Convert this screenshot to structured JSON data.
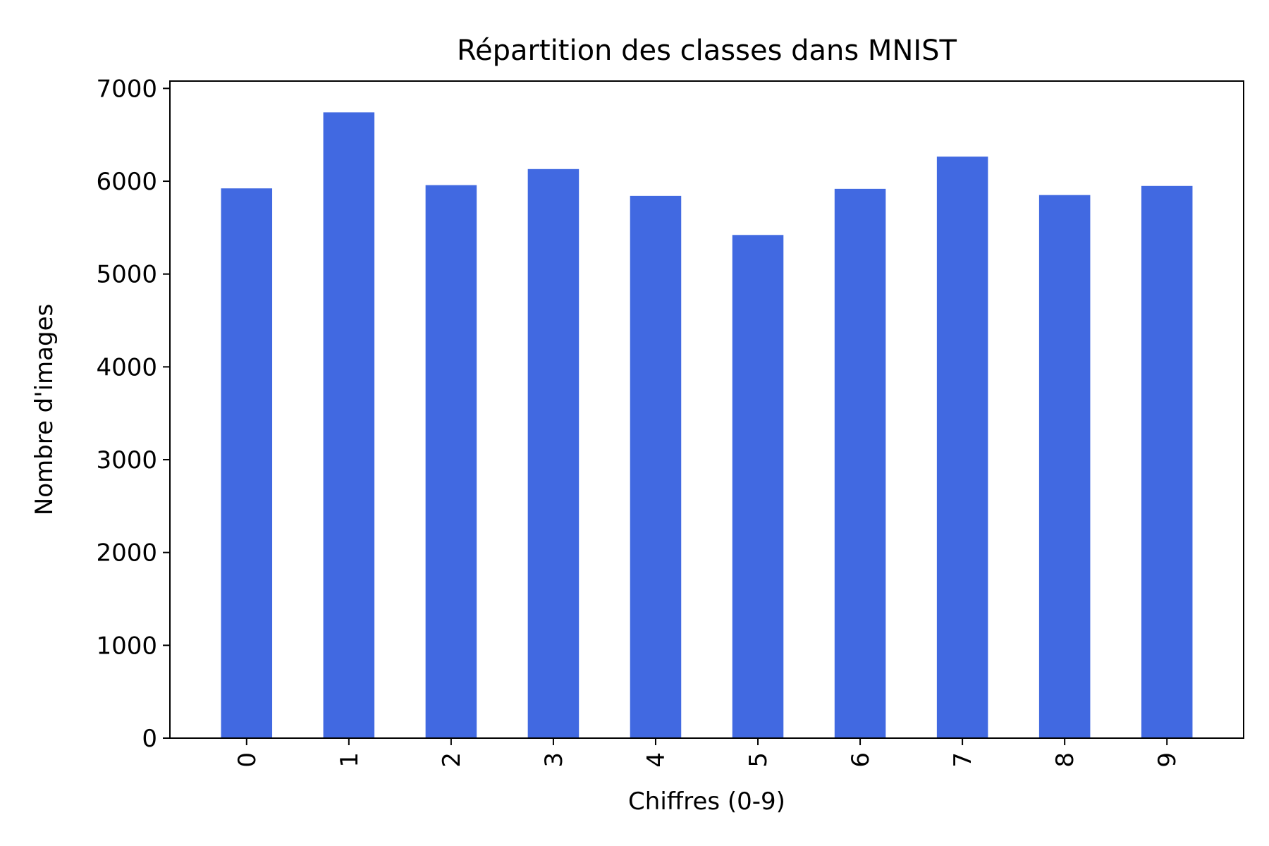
{
  "chart_data": {
    "type": "bar",
    "title": "Répartition des classes dans MNIST",
    "xlabel": "Chiffres (0-9)",
    "ylabel": "Nombre d'images",
    "categories": [
      "0",
      "1",
      "2",
      "3",
      "4",
      "5",
      "6",
      "7",
      "8",
      "9"
    ],
    "values": [
      5923,
      6742,
      5958,
      6131,
      5842,
      5421,
      5918,
      6265,
      5851,
      5949
    ],
    "ylim": [
      0,
      7079
    ],
    "yticks": [
      0,
      1000,
      2000,
      3000,
      4000,
      5000,
      6000,
      7000
    ],
    "ytick_labels": [
      "0",
      "1000",
      "2000",
      "3000",
      "4000",
      "5000",
      "6000",
      "7000"
    ],
    "bar_color": "#4169E1",
    "xtick_rotation": "vertical",
    "grid": false,
    "legend": "none"
  }
}
